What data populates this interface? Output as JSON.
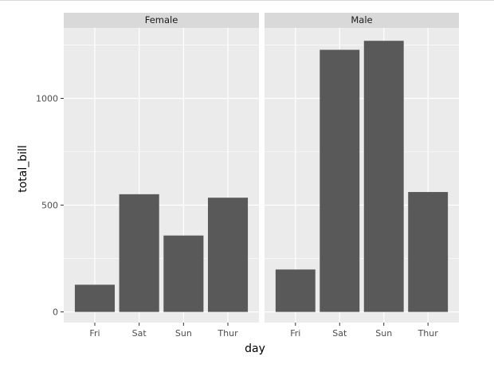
{
  "chart_data": {
    "type": "bar",
    "xlabel": "day",
    "ylabel": "total_bill",
    "ylim": [
      -50,
      1330
    ],
    "yticks": [
      0,
      500,
      1000
    ],
    "categories": [
      "Fri",
      "Sat",
      "Sun",
      "Thur"
    ],
    "facets": [
      {
        "name": "Female",
        "values": [
          127.31,
          551.05,
          357.7,
          534.89
        ]
      },
      {
        "name": "Male",
        "values": [
          198.57,
          1227.35,
          1269.46,
          561.44
        ]
      }
    ],
    "grid": true,
    "bar_color": "#595959",
    "panel_color": "#ebebeb",
    "strip_color": "#d9d9d9"
  }
}
